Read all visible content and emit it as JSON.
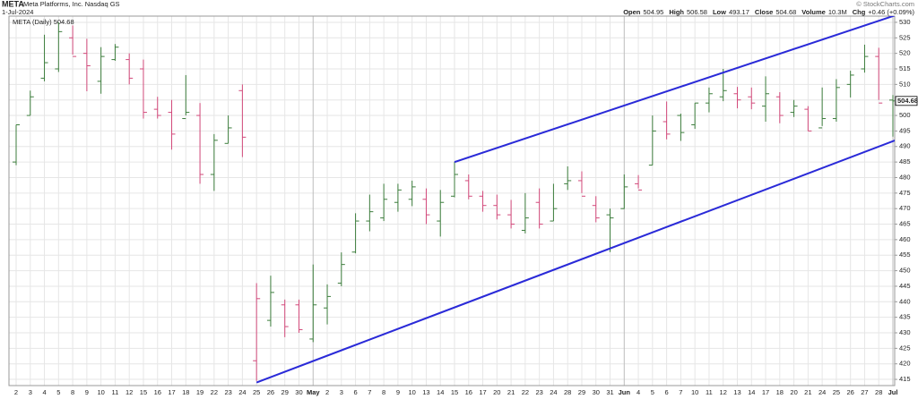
{
  "chart_data": {
    "type": "ohlc",
    "symbol": "META",
    "company": "Meta Platforms, Inc. Nasdaq GS",
    "date": "1-Jul-2024",
    "copyright": "© StockCharts.com",
    "quote": [
      {
        "label": "Open",
        "value": "504.95"
      },
      {
        "label": "High",
        "value": "506.58"
      },
      {
        "label": "Low",
        "value": "493.17"
      },
      {
        "label": "Close",
        "value": "504.68"
      },
      {
        "label": "Volume",
        "value": "10.3M"
      },
      {
        "label": "Chg",
        "value": "+0.46 (+0.09%)"
      }
    ],
    "legend": "META (Daily) 504.68",
    "last_price_label": "504.68",
    "categories": [
      "2",
      "3",
      "4",
      "5",
      "8",
      "9",
      "10",
      "11",
      "12",
      "15",
      "16",
      "17",
      "18",
      "19",
      "22",
      "23",
      "24",
      "25",
      "26",
      "29",
      "30",
      "May",
      "2",
      "3",
      "6",
      "7",
      "8",
      "9",
      "10",
      "13",
      "14",
      "15",
      "16",
      "17",
      "20",
      "21",
      "22",
      "23",
      "24",
      "28",
      "29",
      "30",
      "31",
      "Jun",
      "4",
      "5",
      "6",
      "7",
      "10",
      "11",
      "12",
      "13",
      "14",
      "17",
      "18",
      "20",
      "21",
      "24",
      "25",
      "26",
      "27",
      "28",
      "Jul"
    ],
    "month_starts": [
      21,
      43,
      62
    ],
    "open": [
      485,
      500,
      512,
      515,
      525,
      520,
      511,
      518,
      518,
      515,
      502,
      501,
      499,
      500,
      481,
      491,
      508,
      421,
      434,
      439,
      439,
      428,
      438,
      446,
      456,
      466,
      467,
      472,
      473,
      473,
      466,
      474,
      479,
      474,
      471,
      468,
      463,
      472,
      466,
      478,
      479,
      471,
      468,
      470,
      478,
      484,
      498,
      500,
      497,
      504,
      506,
      507,
      506,
      503,
      506,
      501,
      502,
      496,
      499,
      510,
      515,
      519,
      504.95
    ],
    "high": [
      497,
      508,
      526,
      530,
      529,
      524.7,
      522,
      523,
      520,
      518,
      506,
      505,
      513,
      504,
      494,
      500,
      510,
      446,
      448.4,
      440.7,
      440.7,
      452,
      445.6,
      455.9,
      468.5,
      474.5,
      478,
      478,
      479,
      476.5,
      476,
      485,
      481,
      475.7,
      474.5,
      472.8,
      475,
      476.5,
      478,
      483.6,
      482,
      474,
      470,
      481,
      480.8,
      500,
      504.5,
      500.6,
      504,
      509,
      515,
      509.2,
      509,
      512.6,
      507.5,
      505,
      503,
      509,
      511.7,
      514.4,
      522.8,
      521.8,
      506.58
    ],
    "low": [
      484,
      500,
      511,
      514,
      519.6,
      507.8,
      507,
      517.6,
      510,
      499,
      499,
      489,
      500,
      478,
      475.7,
      491,
      486.6,
      414.5,
      432,
      428.6,
      430,
      427,
      432.7,
      445,
      455.6,
      462.7,
      466,
      469,
      470.8,
      465,
      461,
      473.6,
      473,
      469,
      466.5,
      463.6,
      462,
      463.6,
      466,
      476,
      475,
      465.6,
      456,
      469.9,
      476.5,
      484,
      492.3,
      491.8,
      495.7,
      501,
      504.6,
      502.3,
      502,
      498,
      497.5,
      499.5,
      495,
      496.6,
      498,
      505.8,
      513.8,
      505,
      493.17
    ],
    "close": [
      497,
      506,
      517,
      527,
      519,
      516,
      519,
      522,
      512,
      501,
      500,
      494,
      501,
      481,
      492,
      496,
      493,
      441,
      443,
      432,
      431,
      439,
      441.7,
      452,
      466,
      469,
      473,
      476,
      477,
      468,
      472,
      481,
      474,
      471,
      468,
      465,
      467,
      465,
      470,
      479,
      474,
      467,
      467,
      477,
      476,
      495,
      494,
      494.5,
      504,
      507,
      508,
      505,
      504,
      507,
      500,
      503,
      495,
      499,
      509,
      513,
      519,
      504,
      504.68
    ],
    "up_color": "#3c7d3c",
    "down_color": "#d2497a",
    "trendlines": [
      {
        "x": [
          31,
          62
        ],
        "y": [
          485,
          532
        ],
        "color": "#2a2ad8"
      },
      {
        "x": [
          17,
          62
        ],
        "y": [
          414,
          491.7
        ],
        "color": "#2a2ad8"
      }
    ],
    "ylim": [
      413,
      532
    ],
    "yticks": [
      415,
      420,
      425,
      430,
      435,
      440,
      445,
      450,
      455,
      460,
      465,
      470,
      475,
      480,
      485,
      490,
      495,
      500,
      505,
      510,
      515,
      520,
      525,
      530
    ],
    "grid": true
  }
}
